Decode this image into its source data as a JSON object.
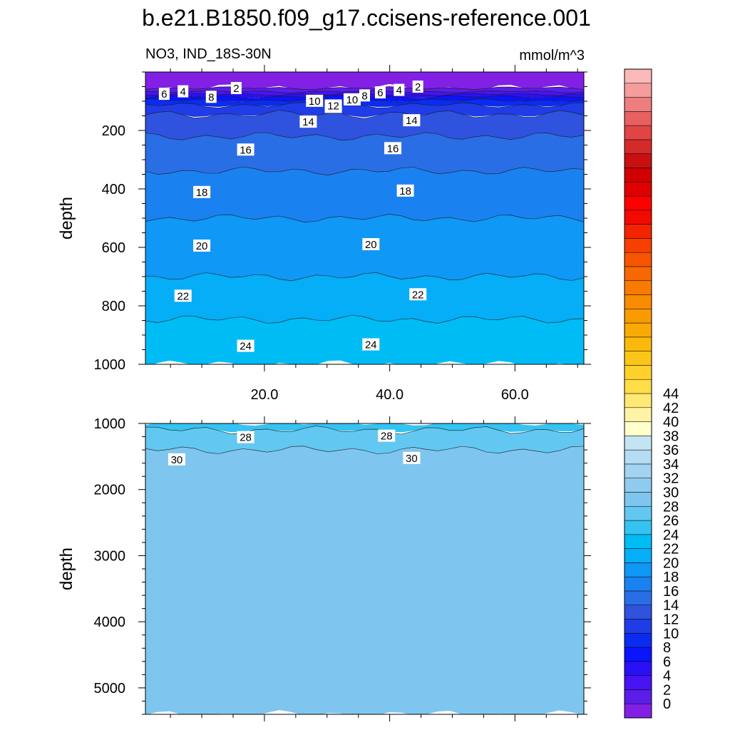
{
  "chart_data": {
    "type": "heatmap",
    "title": "b.e21.B1850.f09_g17.ccisens-reference.001",
    "subtitle_left": "NO3, IND_18S-30N",
    "subtitle_right": "mmol/m^3",
    "ylabel": "depth",
    "grid": false,
    "legend": "right",
    "x_range": [
      1,
      71
    ],
    "x_tick_labels": [
      "20.0",
      "40.0",
      "60.0"
    ],
    "top_panel": {
      "ylim": [
        1000,
        0
      ],
      "y_tick_labels": [
        "200",
        "400",
        "600",
        "800",
        "1000"
      ],
      "contour_labels": [
        "2",
        "4",
        "6",
        "8",
        "10",
        "12",
        "14",
        "16",
        "18",
        "20",
        "22",
        "24"
      ],
      "profile": [
        [
          0,
          0
        ],
        [
          20,
          0.3
        ],
        [
          40,
          0.6
        ],
        [
          55,
          1.0
        ],
        [
          70,
          3.5
        ],
        [
          85,
          7.0
        ],
        [
          100,
          9.5
        ],
        [
          120,
          11.7
        ],
        [
          140,
          12.8
        ],
        [
          160,
          13.6
        ],
        [
          200,
          14.6
        ],
        [
          260,
          15.8
        ],
        [
          300,
          16.5
        ],
        [
          400,
          17.8
        ],
        [
          500,
          19.0
        ],
        [
          600,
          20.0
        ],
        [
          700,
          21.0
        ],
        [
          800,
          22.4
        ],
        [
          900,
          23.7
        ],
        [
          1000,
          24.4
        ]
      ]
    },
    "bottom_panel": {
      "ylim": [
        1000,
        5400
      ],
      "y_tick_labels": [
        "1000",
        "2000",
        "3000",
        "4000",
        "5000"
      ],
      "contour_labels": [
        "28",
        "30"
      ],
      "profile": [
        [
          1000,
          26.0
        ],
        [
          1100,
          27.0
        ],
        [
          1200,
          27.8
        ],
        [
          1300,
          28.4
        ],
        [
          1400,
          29.0
        ],
        [
          1500,
          29.6
        ],
        [
          1570,
          30.0
        ],
        [
          2000,
          30.3
        ],
        [
          5300,
          30.5
        ],
        [
          5400,
          30.6
        ]
      ]
    },
    "colorbar": {
      "min": -1,
      "max": 46,
      "step": 2,
      "tick_labels": [
        "0",
        "2",
        "4",
        "6",
        "8",
        "10",
        "12",
        "14",
        "16",
        "18",
        "20",
        "22",
        "24",
        "26",
        "28",
        "30",
        "32",
        "34",
        "36",
        "38",
        "40",
        "42",
        "44"
      ],
      "colors": [
        "#8220e6",
        "#5a1ee8",
        "#4813f2",
        "#2a10f7",
        "#0a14ff",
        "#0a2cf0",
        "#1f3ce6",
        "#2f52df",
        "#2a6ee6",
        "#1a82f0",
        "#0f98f5",
        "#05aef7",
        "#00bcf5",
        "#34c3f2",
        "#62c8f1",
        "#7ec6ef",
        "#8ecbef",
        "#a2d3f0",
        "#b4dcf2",
        "#c4e4f4",
        "#ffffcc",
        "#fff3a6",
        "#ffe975",
        "#ffdd47",
        "#fdd12a",
        "#fcc618",
        "#fbb90c",
        "#faaa04",
        "#f99b00",
        "#f98c00",
        "#f87a00",
        "#f86800",
        "#f75500",
        "#f63f00",
        "#f52400",
        "#f20a00",
        "#ff0000",
        "#e00000",
        "#d10000",
        "#c81010",
        "#d52a2a",
        "#e04444",
        "#e86060",
        "#ee7e7e",
        "#f59c9c",
        "#fbb8b8"
      ]
    }
  }
}
